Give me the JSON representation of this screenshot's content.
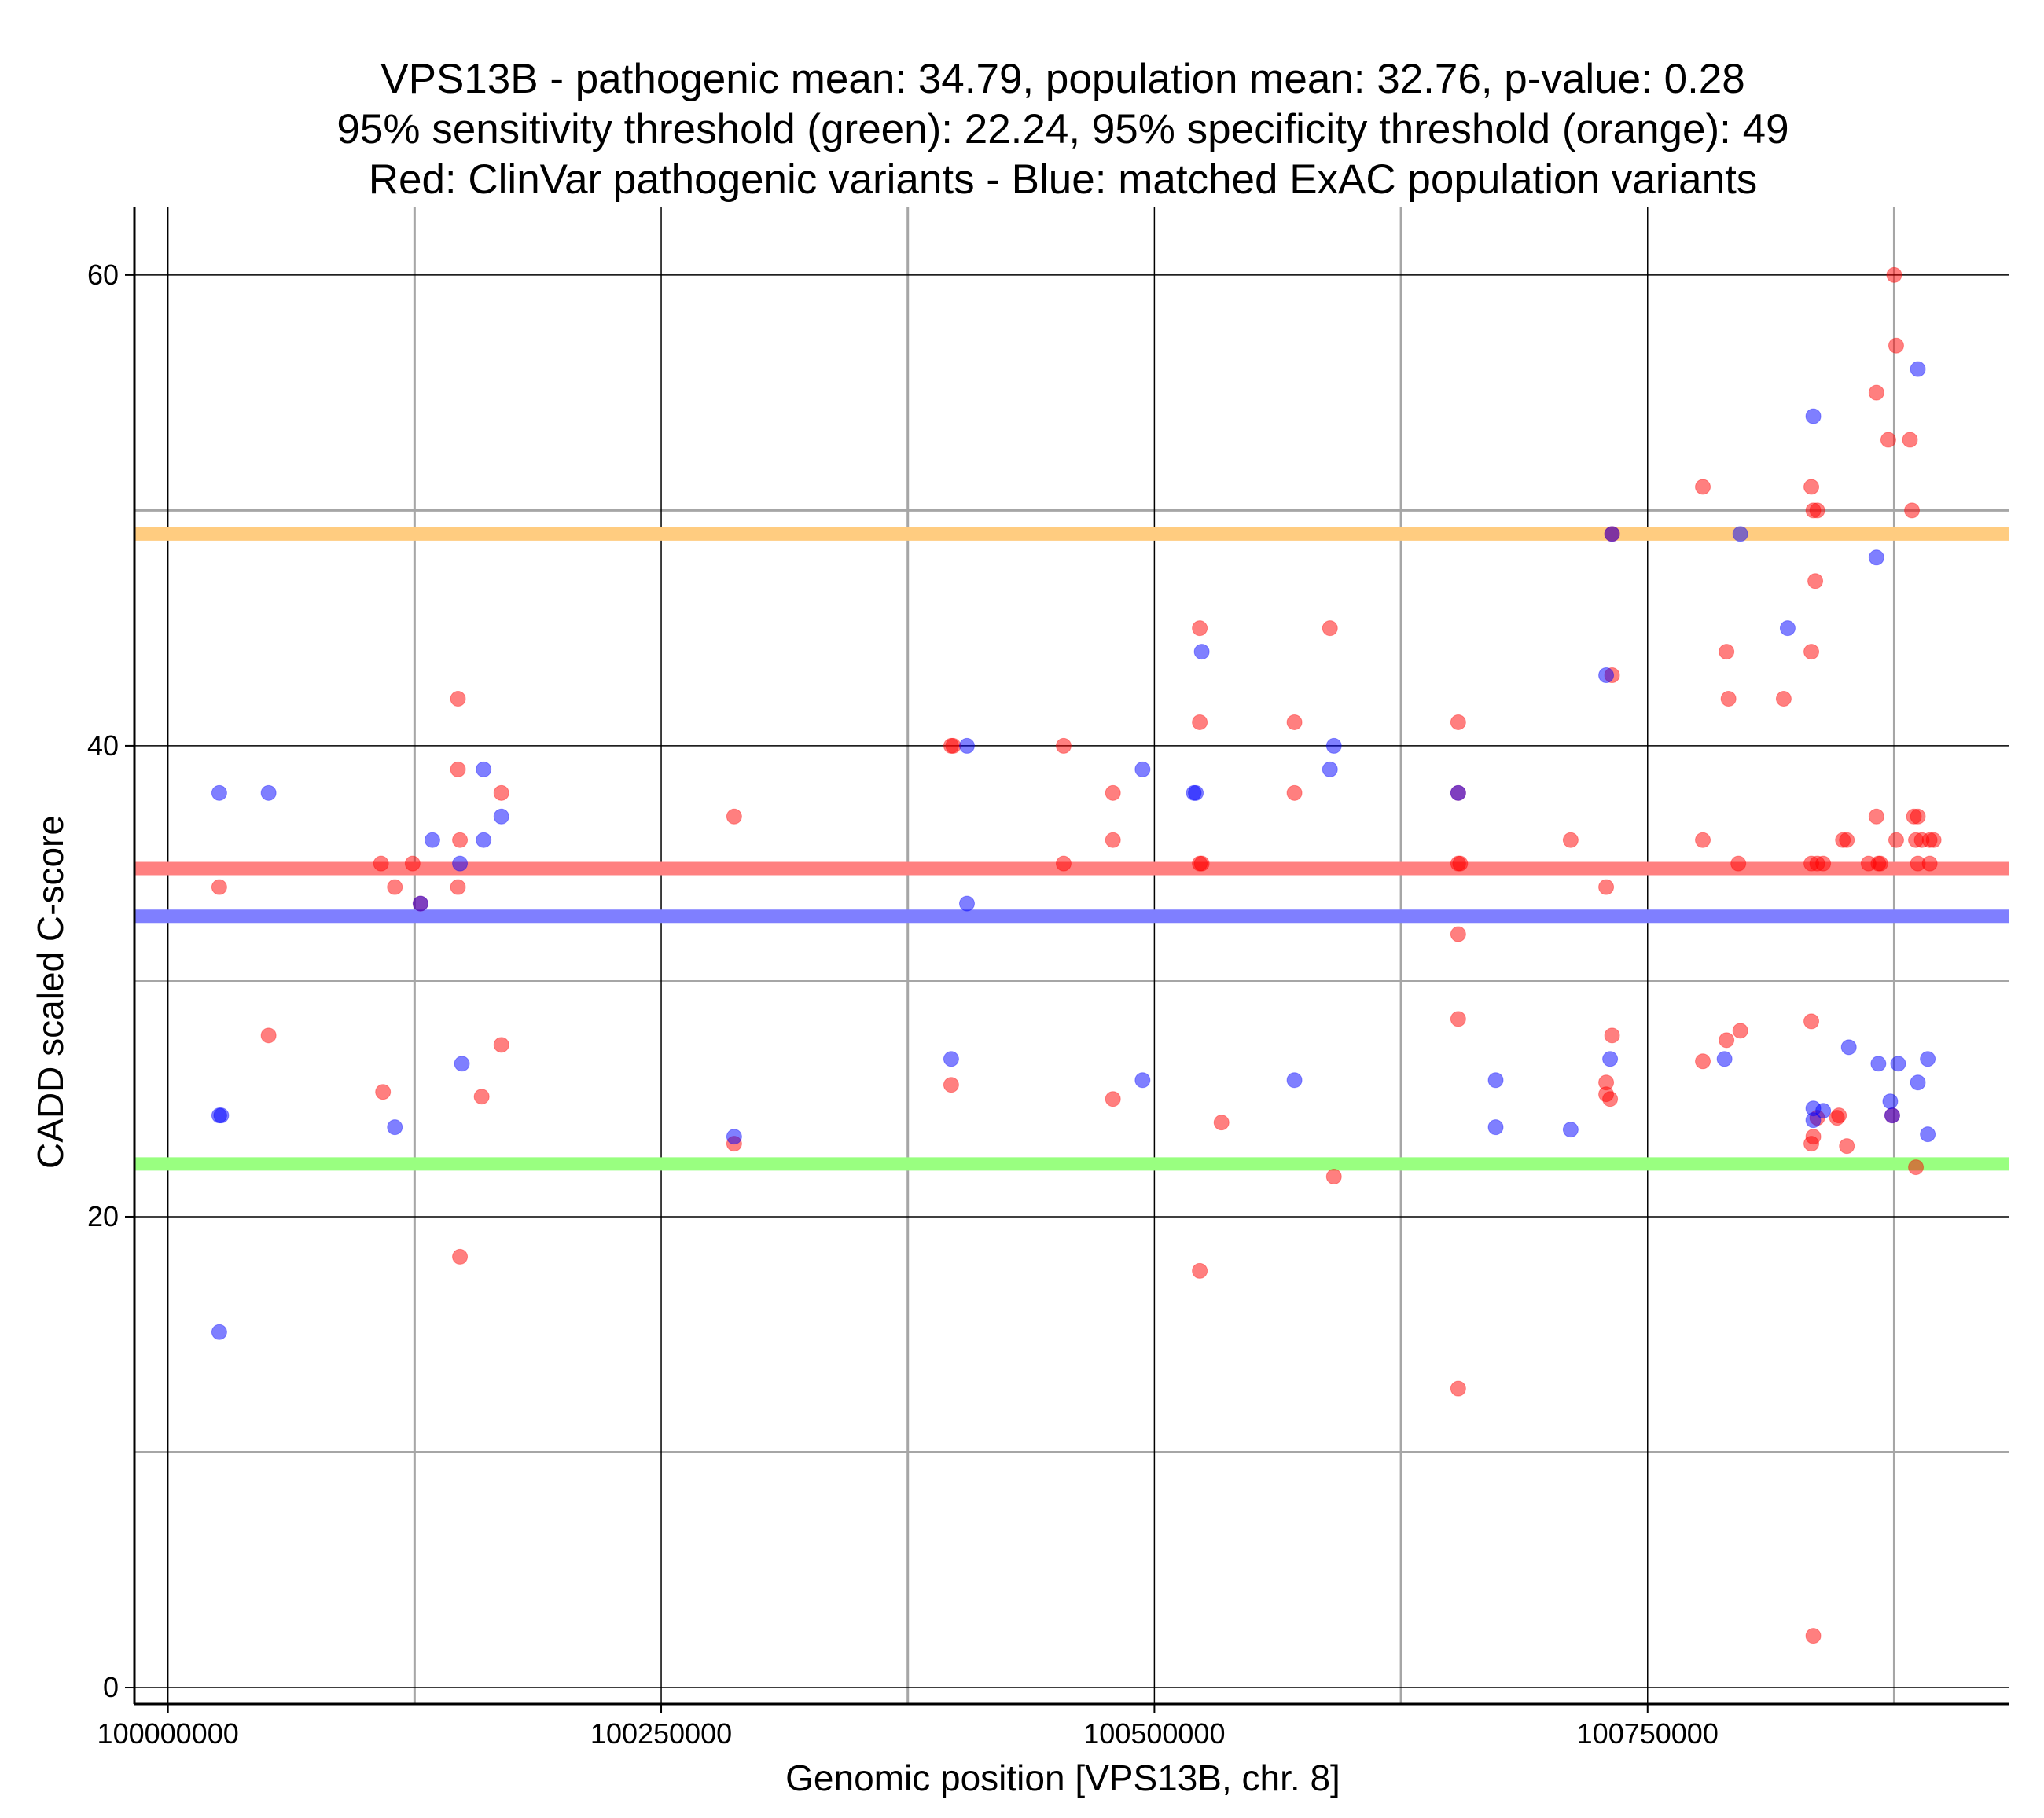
{
  "chart_data": {
    "type": "scatter",
    "title": [
      "VPS13B - pathogenic mean: 34.79, population mean: 32.76, p-value: 0.28",
      "95% sensitivity threshold (green): 22.24, 95% specificity threshold (orange): 49",
      "Red: ClinVar pathogenic variants - Blue: matched ExAC population variants"
    ],
    "xlabel": "Genomic position [VPS13B, chr. 8]",
    "ylabel": "CADD scaled C-score",
    "xlim": [
      99983000,
      100933000
    ],
    "ylim": [
      -0.7,
      62.9
    ],
    "x_ticks": [
      100000000,
      100250000,
      100500000,
      100750000
    ],
    "x_tick_labels": [
      "100000000",
      "100250000",
      "100500000",
      "100750000"
    ],
    "y_ticks": [
      0,
      20,
      40,
      60
    ],
    "y_tick_labels": [
      "0",
      "20",
      "40",
      "60"
    ],
    "grid_major_x": [
      100000000,
      100250000,
      100500000,
      100750000
    ],
    "grid_minor_x": [
      100125000,
      100375000,
      100625000,
      100875000
    ],
    "grid_major_y": [
      0,
      20,
      40,
      60
    ],
    "grid_minor_y": [
      10,
      30,
      50
    ],
    "colors": {
      "pathogenic": "#ff0000",
      "population": "#0000ff",
      "pathogenic_mean_line": "#ff8080",
      "population_mean_line": "#7f7fff",
      "sensitivity_line": "#99ff80",
      "specificity_line": "#ffcc80"
    },
    "hlines": [
      {
        "name": "specificity-threshold",
        "value": 49,
        "color": "#ffcc80"
      },
      {
        "name": "pathogenic-mean",
        "value": 34.79,
        "color": "#ff8080"
      },
      {
        "name": "population-mean",
        "value": 32.76,
        "color": "#7f7fff"
      },
      {
        "name": "sensitivity-threshold",
        "value": 22.24,
        "color": "#99ff80"
      }
    ],
    "series": [
      {
        "name": "ClinVar pathogenic variants",
        "color": "#ff0000",
        "points": [
          [
            100026000,
            34
          ],
          [
            100051000,
            27.7
          ],
          [
            100108000,
            35
          ],
          [
            100109000,
            25.3
          ],
          [
            100115000,
            34
          ],
          [
            100124000,
            35
          ],
          [
            100128000,
            33.3
          ],
          [
            100147000,
            42
          ],
          [
            100147000,
            39
          ],
          [
            100148000,
            36
          ],
          [
            100147000,
            34
          ],
          [
            100148000,
            18.3
          ],
          [
            100159000,
            25.1
          ],
          [
            100169000,
            38
          ],
          [
            100169000,
            27.3
          ],
          [
            100287000,
            37
          ],
          [
            100287000,
            23.1
          ],
          [
            100397000,
            40
          ],
          [
            100398000,
            40
          ],
          [
            100397000,
            25.6
          ],
          [
            100454000,
            40
          ],
          [
            100454000,
            35
          ],
          [
            100479000,
            38
          ],
          [
            100479000,
            36
          ],
          [
            100479000,
            25
          ],
          [
            100523000,
            45
          ],
          [
            100523000,
            41
          ],
          [
            100523000,
            35
          ],
          [
            100524000,
            35
          ],
          [
            100523000,
            17.7
          ],
          [
            100534000,
            24
          ],
          [
            100571000,
            41
          ],
          [
            100571000,
            38
          ],
          [
            100589000,
            45
          ],
          [
            100591000,
            21.7
          ],
          [
            100654000,
            41
          ],
          [
            100654000,
            38
          ],
          [
            100654000,
            35
          ],
          [
            100655000,
            35
          ],
          [
            100654000,
            32
          ],
          [
            100654000,
            28.4
          ],
          [
            100654000,
            12.7
          ],
          [
            100711000,
            36
          ],
          [
            100729000,
            34
          ],
          [
            100729000,
            25.7
          ],
          [
            100729000,
            25.2
          ],
          [
            100731000,
            25
          ],
          [
            100732000,
            43
          ],
          [
            100732000,
            49
          ],
          [
            100732000,
            27.7
          ],
          [
            100778000,
            51
          ],
          [
            100778000,
            36
          ],
          [
            100778000,
            26.6
          ],
          [
            100790000,
            44
          ],
          [
            100791000,
            42
          ],
          [
            100790000,
            27.5
          ],
          [
            100796000,
            35
          ],
          [
            100797000,
            27.9
          ],
          [
            100819000,
            42
          ],
          [
            100833000,
            51
          ],
          [
            100834000,
            50
          ],
          [
            100836000,
            50
          ],
          [
            100835000,
            47
          ],
          [
            100833000,
            44
          ],
          [
            100833000,
            35
          ],
          [
            100836000,
            35
          ],
          [
            100839000,
            35
          ],
          [
            100833000,
            28.3
          ],
          [
            100836000,
            24.2
          ],
          [
            100834000,
            23.4
          ],
          [
            100833000,
            23.1
          ],
          [
            100834000,
            2.2
          ],
          [
            100847000,
            24.3
          ],
          [
            100846000,
            24.2
          ],
          [
            100849000,
            36
          ],
          [
            100851000,
            36
          ],
          [
            100851000,
            23
          ],
          [
            100862000,
            35
          ],
          [
            100866000,
            55
          ],
          [
            100866000,
            37
          ],
          [
            100867000,
            35
          ],
          [
            100868000,
            35
          ],
          [
            100872000,
            53
          ],
          [
            100874000,
            24.3
          ],
          [
            100875000,
            60
          ],
          [
            100876000,
            57
          ],
          [
            100876000,
            36
          ],
          [
            100883000,
            53
          ],
          [
            100884000,
            50
          ],
          [
            100885000,
            37
          ],
          [
            100887000,
            37
          ],
          [
            100886000,
            36
          ],
          [
            100889000,
            36
          ],
          [
            100893000,
            36
          ],
          [
            100895000,
            36
          ],
          [
            100887000,
            35
          ],
          [
            100893000,
            35
          ],
          [
            100886000,
            22.1
          ]
        ]
      },
      {
        "name": "matched ExAC population variants",
        "color": "#0000ff",
        "points": [
          [
            100026000,
            38
          ],
          [
            100026000,
            24.3
          ],
          [
            100027000,
            24.3
          ],
          [
            100026000,
            15.1
          ],
          [
            100051000,
            38
          ],
          [
            100115000,
            23.8
          ],
          [
            100128000,
            33.3
          ],
          [
            100134000,
            36
          ],
          [
            100148000,
            35
          ],
          [
            100149000,
            26.5
          ],
          [
            100160000,
            39
          ],
          [
            100160000,
            36
          ],
          [
            100169000,
            37
          ],
          [
            100287000,
            23.4
          ],
          [
            100397000,
            26.7
          ],
          [
            100405000,
            40
          ],
          [
            100405000,
            33.3
          ],
          [
            100494000,
            39
          ],
          [
            100494000,
            25.8
          ],
          [
            100520000,
            38
          ],
          [
            100521000,
            38
          ],
          [
            100524000,
            44
          ],
          [
            100571000,
            25.8
          ],
          [
            100589000,
            39
          ],
          [
            100591000,
            40
          ],
          [
            100654000,
            38
          ],
          [
            100673000,
            25.8
          ],
          [
            100673000,
            23.8
          ],
          [
            100711000,
            23.7
          ],
          [
            100729000,
            43
          ],
          [
            100731000,
            26.7
          ],
          [
            100732000,
            49
          ],
          [
            100789000,
            26.7
          ],
          [
            100797000,
            49
          ],
          [
            100821000,
            45
          ],
          [
            100834000,
            54
          ],
          [
            100834000,
            24.6
          ],
          [
            100834000,
            24.1
          ],
          [
            100839000,
            24.5
          ],
          [
            100852000,
            27.2
          ],
          [
            100866000,
            48
          ],
          [
            100867000,
            26.5
          ],
          [
            100873000,
            24.9
          ],
          [
            100874000,
            24.3
          ],
          [
            100877000,
            26.5
          ],
          [
            100887000,
            56
          ],
          [
            100887000,
            25.7
          ],
          [
            100892000,
            26.7
          ],
          [
            100892000,
            23.5
          ]
        ]
      }
    ]
  }
}
